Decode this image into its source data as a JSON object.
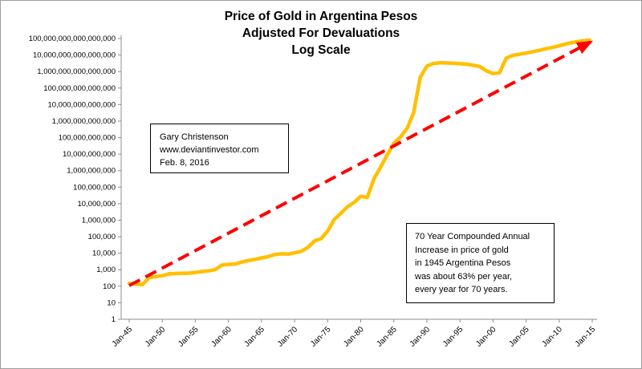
{
  "title": {
    "line1": "Price of Gold in Argentina Pesos",
    "line2": "Adjusted For Devaluations",
    "line3": "Log Scale"
  },
  "annotations": {
    "credit": {
      "line1": "Gary Christenson",
      "line2": "www.deviantinvestor.com",
      "line3": "Feb. 8, 2016"
    },
    "note": {
      "line1": "70 Year Compounded Annual",
      "line2": "Increase in price of gold",
      "line3": "in 1945 Argentina Pesos",
      "line4": "was about 63% per year,",
      "line5": "every year for 70 years."
    }
  },
  "colors": {
    "gold_line": "#FFC000",
    "trend_line": "#FF0000",
    "axis": "#8c8c8c",
    "text": "#000000"
  },
  "chart_data": {
    "type": "line",
    "title": "Price of Gold in Argentina Pesos - Adjusted For Devaluations - Log Scale",
    "y_scale": "log",
    "grid": false,
    "legend": "none",
    "xlim": [
      1945,
      2015
    ],
    "ylim": [
      1,
      1e+17
    ],
    "y_tick_labels": [
      "100,000,000,000,000,000",
      "10,000,000,000,000,000",
      "1,000,000,000,000,000",
      "100,000,000,000,000",
      "10,000,000,000,000",
      "1,000,000,000,000",
      "100,000,000,000",
      "10,000,000,000",
      "1,000,000,000",
      "100,000,000",
      "10,000,000",
      "1,000,000",
      "100,000",
      "10,000",
      "1,000",
      "100",
      "10",
      "1"
    ],
    "x_ticks": [
      {
        "label": "Jan-45",
        "year": 1945
      },
      {
        "label": "Jan-50",
        "year": 1950
      },
      {
        "label": "Jan-55",
        "year": 1955
      },
      {
        "label": "Jan-60",
        "year": 1960
      },
      {
        "label": "Jan-65",
        "year": 1965
      },
      {
        "label": "Jan-70",
        "year": 1970
      },
      {
        "label": "Jan-75",
        "year": 1975
      },
      {
        "label": "Jan-80",
        "year": 1980
      },
      {
        "label": "Jan-85",
        "year": 1985
      },
      {
        "label": "Jan-90",
        "year": 1990
      },
      {
        "label": "Jan-95",
        "year": 1995
      },
      {
        "label": "Jan-00",
        "year": 2000
      },
      {
        "label": "Jan-05",
        "year": 2005
      },
      {
        "label": "Jan-10",
        "year": 2010
      },
      {
        "label": "Jan-15",
        "year": 2015
      }
    ],
    "series": [
      {
        "name": "gold-price-in-1945-pesos",
        "color": "#FFC000",
        "style": "solid",
        "points": [
          [
            1945,
            150
          ],
          [
            1946,
            132
          ],
          [
            1947,
            125
          ],
          [
            1948,
            330
          ],
          [
            1949,
            390
          ],
          [
            1950,
            430
          ],
          [
            1951,
            560
          ],
          [
            1952,
            590
          ],
          [
            1953,
            610
          ],
          [
            1954,
            620
          ],
          [
            1955,
            680
          ],
          [
            1956,
            780
          ],
          [
            1957,
            860
          ],
          [
            1958,
            1000
          ],
          [
            1959,
            1900
          ],
          [
            1960,
            2100
          ],
          [
            1961,
            2200
          ],
          [
            1962,
            2900
          ],
          [
            1963,
            3600
          ],
          [
            1964,
            4200
          ],
          [
            1965,
            5200
          ],
          [
            1966,
            6200
          ],
          [
            1967,
            8200
          ],
          [
            1968,
            9200
          ],
          [
            1969,
            8800
          ],
          [
            1970,
            10500
          ],
          [
            1971,
            13000
          ],
          [
            1972,
            22000
          ],
          [
            1973,
            55000
          ],
          [
            1974,
            75000
          ],
          [
            1975,
            220000
          ],
          [
            1976,
            1100000.0
          ],
          [
            1977,
            2600000.0
          ],
          [
            1978,
            6500000.0
          ],
          [
            1979,
            12000000.0
          ],
          [
            1980,
            28000000.0
          ],
          [
            1981,
            24000000.0
          ],
          [
            1982,
            320000000.0
          ],
          [
            1983,
            1600000000.0
          ],
          [
            1984,
            9000000000.0
          ],
          [
            1985,
            45000000000.0
          ],
          [
            1986,
            110000000000.0
          ],
          [
            1987,
            350000000000.0
          ],
          [
            1988,
            3200000000000.0
          ],
          [
            1989,
            450000000000000.0
          ],
          [
            1990,
            2100000000000000.0
          ],
          [
            1991,
            3100000000000000.0
          ],
          [
            1992,
            3400000000000000.0
          ],
          [
            1993,
            3300000000000000.0
          ],
          [
            1994,
            3200000000000000.0
          ],
          [
            1995,
            3000000000000000.0
          ],
          [
            1996,
            2800000000000000.0
          ],
          [
            1997,
            2400000000000000.0
          ],
          [
            1998,
            2000000000000000.0
          ],
          [
            1999,
            1100000000000000.0
          ],
          [
            2000,
            750000000000000.0
          ],
          [
            2001,
            850000000000000.0
          ],
          [
            2002,
            6500000000000000.0
          ],
          [
            2003,
            9500000000000000.0
          ],
          [
            2004,
            1.1e+16
          ],
          [
            2005,
            1.3e+16
          ],
          [
            2006,
            1.6e+16
          ],
          [
            2007,
            1.9e+16
          ],
          [
            2008,
            2.4e+16
          ],
          [
            2009,
            2.9e+16
          ],
          [
            2010,
            3.6e+16
          ],
          [
            2011,
            4.7e+16
          ],
          [
            2012,
            5.7e+16
          ],
          [
            2013,
            6.7e+16
          ],
          [
            2014,
            7.6e+16
          ],
          [
            2014.6,
            8e+16
          ]
        ]
      },
      {
        "name": "63-percent-compounded-trend",
        "color": "#FF0000",
        "style": "dashed-arrow",
        "points": [
          [
            1945,
            110
          ],
          [
            2014.7,
            6e+16
          ]
        ]
      }
    ]
  }
}
